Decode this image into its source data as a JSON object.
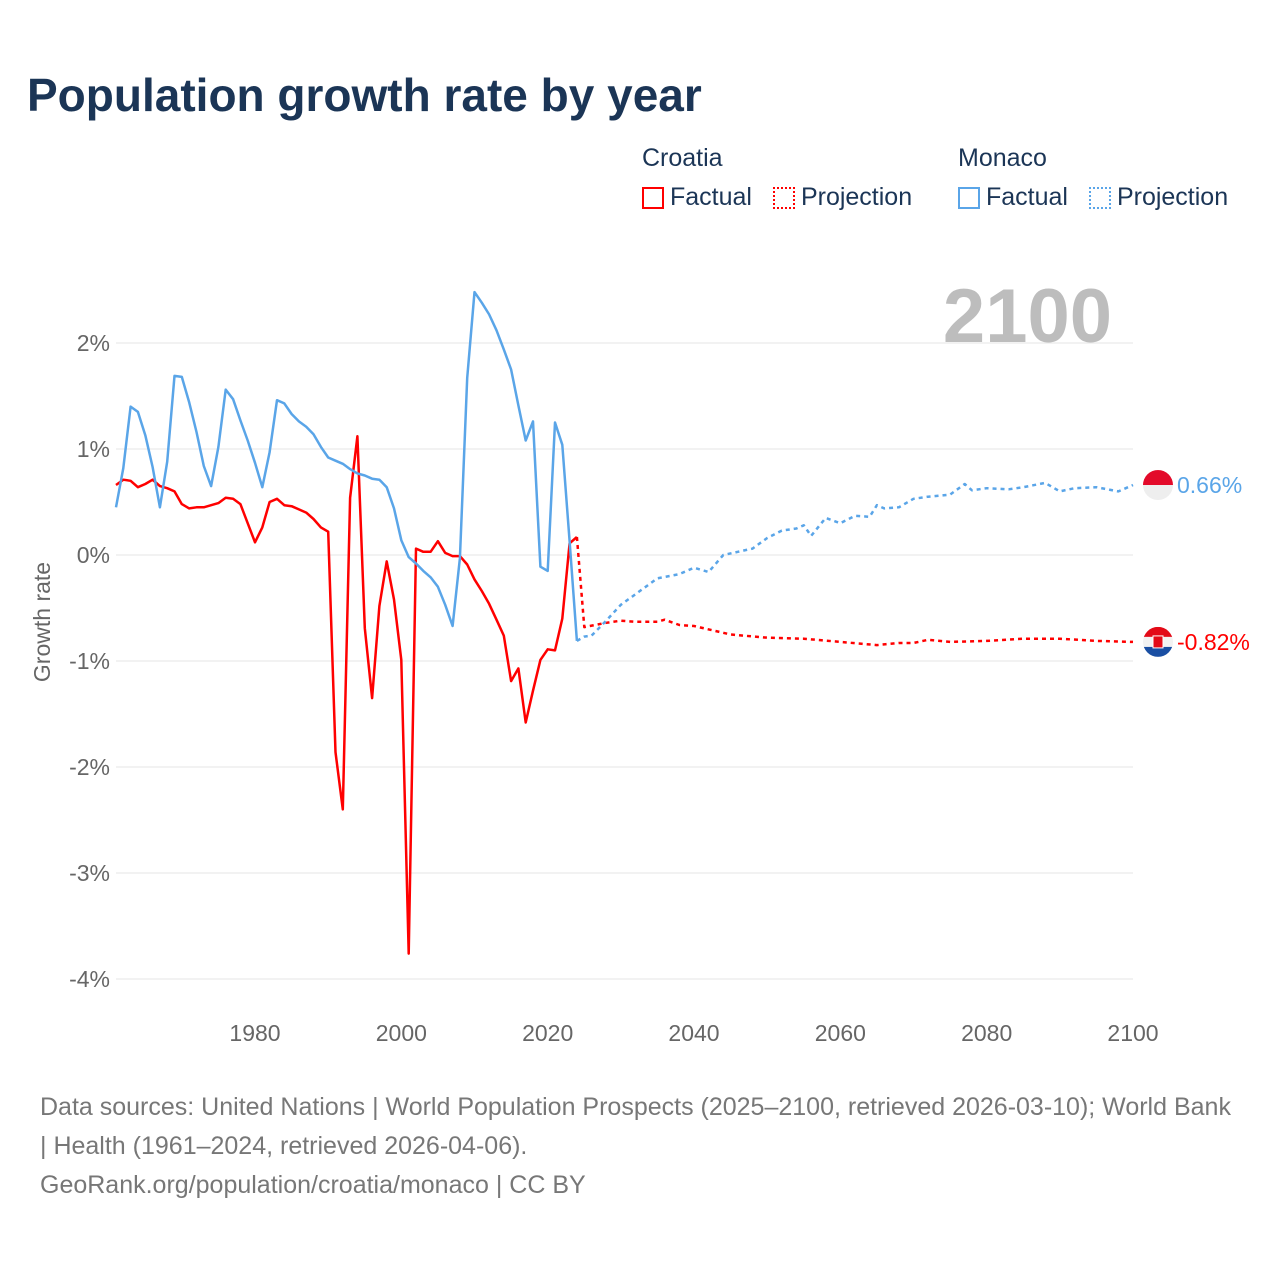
{
  "title": "Population growth rate by year",
  "legend": {
    "groups": [
      {
        "name": "Croatia",
        "color": "#ff0000",
        "items": [
          "Factual",
          "Projection"
        ]
      },
      {
        "name": "Monaco",
        "color": "#5aa5e8",
        "items": [
          "Factual",
          "Projection"
        ]
      }
    ]
  },
  "year_overlay": "2100",
  "end_labels": {
    "monaco": "0.66%",
    "croatia": "-0.82%"
  },
  "footer": {
    "sources": "Data sources: United Nations | World Population Prospects (2025–2100, retrieved 2026-03-10); World Bank | Health (1961–2024, retrieved 2026-04-06).",
    "link": "GeoRank.org/population/croatia/monaco | CC BY"
  },
  "chart_data": {
    "type": "line",
    "title": "Population growth rate by year",
    "xlabel": "",
    "ylabel": "Growth rate",
    "xlim": [
      1961,
      2100
    ],
    "ylim": [
      -4.3,
      2.6
    ],
    "xticks": [
      1980,
      2000,
      2020,
      2040,
      2060,
      2080,
      2100
    ],
    "xtick_labels": [
      "1980",
      "2000",
      "2020",
      "2040",
      "2060",
      "2080",
      "2100"
    ],
    "yticks": [
      2,
      1,
      0,
      -1,
      -2,
      -3,
      -4
    ],
    "ytick_labels": [
      "2%",
      "1%",
      "0%",
      "-1%",
      "-2%",
      "-3%",
      "-4%"
    ],
    "grid": true,
    "legend_position": "top-right",
    "series": [
      {
        "name": "Croatia Factual",
        "color": "#ff0000",
        "dash": false,
        "x_start": 1961,
        "values": [
          0.66,
          0.71,
          0.7,
          0.64,
          0.67,
          0.71,
          0.65,
          0.63,
          0.6,
          0.48,
          0.44,
          0.45,
          0.45,
          0.47,
          0.49,
          0.54,
          0.53,
          0.48,
          0.3,
          0.12,
          0.26,
          0.5,
          0.53,
          0.47,
          0.46,
          0.43,
          0.4,
          0.34,
          0.26,
          0.22,
          -1.86,
          -2.4,
          0.54,
          1.12,
          -0.69,
          -1.35,
          -0.48,
          -0.06,
          -0.42,
          -0.99,
          -3.76,
          0.06,
          0.03,
          0.03,
          0.13,
          0.02,
          -0.01,
          -0.01,
          -0.09,
          -0.23,
          -0.34,
          -0.46,
          -0.61,
          -0.76,
          -1.19,
          -1.07,
          -1.58,
          -1.28,
          -0.99,
          -0.89,
          -0.9,
          -0.6,
          0.11,
          0.17
        ]
      },
      {
        "name": "Croatia Projection",
        "color": "#ff0000",
        "dash": true,
        "x": [
          2024,
          2025,
          2028,
          2030,
          2032,
          2035,
          2036,
          2038,
          2040,
          2045,
          2050,
          2055,
          2060,
          2065,
          2068,
          2070,
          2072,
          2075,
          2080,
          2085,
          2090,
          2095,
          2100
        ],
        "values": [
          0.17,
          -0.68,
          -0.64,
          -0.62,
          -0.63,
          -0.63,
          -0.61,
          -0.66,
          -0.67,
          -0.75,
          -0.78,
          -0.79,
          -0.82,
          -0.85,
          -0.83,
          -0.83,
          -0.8,
          -0.82,
          -0.81,
          -0.79,
          -0.79,
          -0.81,
          -0.82
        ]
      },
      {
        "name": "Monaco Factual",
        "color": "#5aa5e8",
        "dash": false,
        "x_start": 1961,
        "values": [
          0.45,
          0.82,
          1.4,
          1.35,
          1.13,
          0.83,
          0.45,
          0.88,
          1.69,
          1.68,
          1.44,
          1.16,
          0.84,
          0.65,
          1.02,
          1.56,
          1.47,
          1.27,
          1.08,
          0.87,
          0.64,
          0.97,
          1.46,
          1.43,
          1.33,
          1.26,
          1.21,
          1.14,
          1.02,
          0.92,
          0.89,
          0.86,
          0.81,
          0.77,
          0.75,
          0.72,
          0.71,
          0.64,
          0.44,
          0.14,
          -0.02,
          -0.08,
          -0.15,
          -0.21,
          -0.3,
          -0.47,
          -0.67,
          -0.03,
          1.67,
          2.48,
          2.38,
          2.27,
          2.12,
          1.94,
          1.75,
          1.41,
          1.08,
          1.26,
          -0.11,
          -0.15,
          1.25,
          1.04,
          0.13,
          -0.81
        ]
      },
      {
        "name": "Monaco Projection",
        "color": "#5aa5e8",
        "dash": true,
        "x": [
          2024,
          2025,
          2026,
          2028,
          2030,
          2032,
          2035,
          2038,
          2040,
          2042,
          2044,
          2046,
          2048,
          2050,
          2052,
          2054,
          2055,
          2056,
          2058,
          2060,
          2062,
          2064,
          2065,
          2066,
          2068,
          2070,
          2072,
          2075,
          2077,
          2078,
          2080,
          2083,
          2085,
          2088,
          2090,
          2092,
          2095,
          2098,
          2100
        ],
        "values": [
          -0.81,
          -0.77,
          -0.76,
          -0.62,
          -0.47,
          -0.37,
          -0.22,
          -0.18,
          -0.12,
          -0.16,
          0.0,
          0.03,
          0.06,
          0.16,
          0.23,
          0.25,
          0.28,
          0.18,
          0.35,
          0.3,
          0.37,
          0.36,
          0.47,
          0.44,
          0.45,
          0.53,
          0.55,
          0.57,
          0.67,
          0.61,
          0.63,
          0.62,
          0.64,
          0.68,
          0.6,
          0.63,
          0.64,
          0.6,
          0.66
        ]
      }
    ]
  }
}
